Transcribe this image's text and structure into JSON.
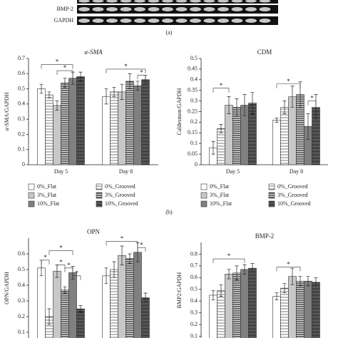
{
  "figure": {
    "gel_rows": [
      "BMP-2",
      "GAPDH"
    ],
    "panel_a_label": "(a)",
    "panel_b_label": "(b)"
  },
  "chart_data": [
    {
      "type": "bar",
      "title": "α-SMA",
      "y_label": "α-SMA/GAPDH",
      "categories": [
        "Day 5",
        "Day 8"
      ],
      "ylim": [
        0,
        0.7
      ],
      "yticks": [
        0,
        0.1,
        0.2,
        0.3,
        0.4,
        0.5,
        0.6,
        0.7
      ],
      "legend": true,
      "series": [
        {
          "name": "0%_Flat",
          "color": "#ffffff",
          "values": [
            0.5,
            0.45
          ],
          "errors": [
            0.03,
            0.05
          ]
        },
        {
          "name": "0%_Grooved",
          "color": "#ffffff",
          "pattern": "stripes-wide",
          "values": [
            0.46,
            0.48
          ],
          "errors": [
            0.02,
            0.03
          ]
        },
        {
          "name": "3%_Flat",
          "color": "#c8c8c8",
          "values": [
            0.39,
            0.48
          ],
          "errors": [
            0.03,
            0.05
          ]
        },
        {
          "name": "3%_Grooved",
          "color": "#ffffff",
          "pattern": "stripes",
          "values": [
            0.54,
            0.55
          ],
          "errors": [
            0.03,
            0.05
          ]
        },
        {
          "name": "10%_Flat",
          "color": "#808080",
          "values": [
            0.57,
            0.52
          ],
          "errors": [
            0.04,
            0.03
          ]
        },
        {
          "name": "10%_Grooved",
          "color": "#ffffff",
          "pattern": "stripes-dense",
          "values": [
            0.58,
            0.56
          ],
          "errors": [
            0.03,
            0.03
          ]
        }
      ],
      "annotations": [
        "*",
        "*",
        "*",
        "*"
      ]
    },
    {
      "type": "bar",
      "title": "CDM",
      "y_label": "Caldesmon/GAPDH",
      "categories": [
        "Day 5",
        "Day 8"
      ],
      "ylim": [
        0,
        0.5
      ],
      "yticks": [
        0,
        0.05,
        0.1,
        0.15,
        0.2,
        0.25,
        0.3,
        0.35,
        0.4,
        0.45,
        0.5
      ],
      "legend": true,
      "series": [
        {
          "name": "0%_Flat",
          "color": "#ffffff",
          "values": [
            0.08,
            0.21
          ],
          "errors": [
            0.03,
            0.01
          ]
        },
        {
          "name": "0%_Grooved",
          "color": "#ffffff",
          "pattern": "stripes-wide",
          "values": [
            0.17,
            0.27
          ],
          "errors": [
            0.02,
            0.03
          ]
        },
        {
          "name": "3%_Flat",
          "color": "#c8c8c8",
          "values": [
            0.28,
            0.32
          ],
          "errors": [
            0.04,
            0.05
          ]
        },
        {
          "name": "3%_Grooved",
          "color": "#ffffff",
          "pattern": "stripes",
          "values": [
            0.27,
            0.33
          ],
          "errors": [
            0.04,
            0.06
          ]
        },
        {
          "name": "10%_Flat",
          "color": "#808080",
          "values": [
            0.28,
            0.18
          ],
          "errors": [
            0.05,
            0.06
          ]
        },
        {
          "name": "10%_Grooved",
          "color": "#ffffff",
          "pattern": "stripes-dense",
          "values": [
            0.29,
            0.27
          ],
          "errors": [
            0.05,
            0.06
          ]
        }
      ],
      "annotations": [
        "*",
        "*",
        "*"
      ]
    },
    {
      "type": "bar",
      "title": "OPN",
      "y_label": "OPN/GAPDH",
      "ylim": [
        0,
        0.7
      ],
      "yticks": [
        0.1,
        0.2,
        0.3,
        0.4,
        0.5,
        0.6
      ],
      "legend": false,
      "series": [
        {
          "name": "0%_Flat",
          "color": "#ffffff",
          "values": [
            0.51,
            0.46
          ],
          "errors": [
            0.05,
            0.05
          ]
        },
        {
          "name": "0%_Grooved",
          "color": "#ffffff",
          "pattern": "stripes-wide",
          "values": [
            0.2,
            0.5
          ],
          "errors": [
            0.05,
            0.05
          ]
        },
        {
          "name": "3%_Flat",
          "color": "#c8c8c8",
          "values": [
            0.49,
            0.59
          ],
          "errors": [
            0.04,
            0.06
          ]
        },
        {
          "name": "3%_Grooved",
          "color": "#ffffff",
          "pattern": "stripes",
          "values": [
            0.37,
            0.57
          ],
          "errors": [
            0.02,
            0.03
          ]
        },
        {
          "name": "10%_Flat",
          "color": "#808080",
          "values": [
            0.48,
            0.61
          ],
          "errors": [
            0.04,
            0.06
          ]
        },
        {
          "name": "10%_Grooved",
          "color": "#ffffff",
          "pattern": "stripes-dense",
          "values": [
            0.25,
            0.32
          ],
          "errors": [
            0.02,
            0.03
          ]
        }
      ],
      "annotations": [
        "*",
        "*",
        "*",
        "*",
        "*",
        "*",
        "*"
      ]
    },
    {
      "type": "bar",
      "title": "BMP-2",
      "y_label": "BMP2/GAPDH",
      "ylim": [
        0,
        0.9
      ],
      "yticks": [
        0.1,
        0.2,
        0.3,
        0.4,
        0.5,
        0.6,
        0.7,
        0.8
      ],
      "legend": false,
      "series": [
        {
          "name": "0%_Flat",
          "color": "#ffffff",
          "values": [
            0.45,
            0.44
          ],
          "errors": [
            0.04,
            0.03
          ]
        },
        {
          "name": "0%_Grooved",
          "color": "#ffffff",
          "pattern": "stripes-wide",
          "values": [
            0.49,
            0.51
          ],
          "errors": [
            0.05,
            0.04
          ]
        },
        {
          "name": "3%_Flat",
          "color": "#c8c8c8",
          "values": [
            0.63,
            0.61
          ],
          "errors": [
            0.04,
            0.07
          ]
        },
        {
          "name": "3%_Grooved",
          "color": "#ffffff",
          "pattern": "stripes",
          "values": [
            0.64,
            0.57
          ],
          "errors": [
            0.06,
            0.04
          ]
        },
        {
          "name": "10%_Flat",
          "color": "#808080",
          "values": [
            0.67,
            0.57
          ],
          "errors": [
            0.04,
            0.04
          ]
        },
        {
          "name": "10%_Grooved",
          "color": "#ffffff",
          "pattern": "stripes-dense",
          "values": [
            0.68,
            0.56
          ],
          "errors": [
            0.04,
            0.04
          ]
        }
      ],
      "annotations": [
        "*",
        "*"
      ]
    }
  ]
}
